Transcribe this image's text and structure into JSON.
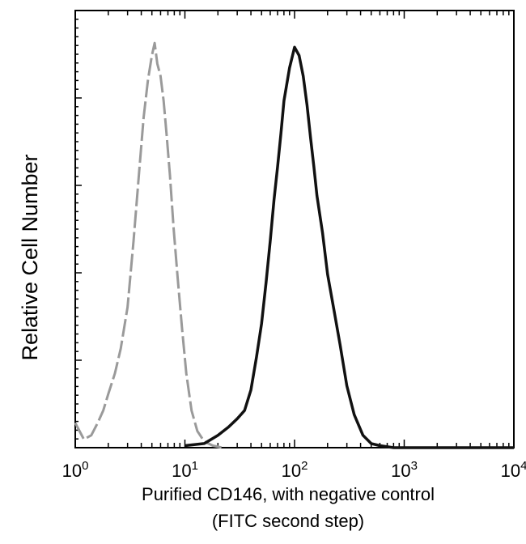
{
  "chart_data": {
    "type": "line",
    "title": "",
    "xlabel_lines": [
      "Purified  CD146, with negative control",
      "(FITC second step)"
    ],
    "ylabel": "Relative Cell Number",
    "x_scale": "log",
    "xlim": [
      1,
      10000
    ],
    "ylim": [
      0,
      1
    ],
    "x_ticks": [
      {
        "base": "10",
        "exp": "0"
      },
      {
        "base": "10",
        "exp": "1"
      },
      {
        "base": "10",
        "exp": "2"
      },
      {
        "base": "10",
        "exp": "3"
      },
      {
        "base": "10",
        "exp": "4"
      }
    ],
    "grid": false,
    "legend": "none",
    "series": [
      {
        "color": "#9a9a9a",
        "style": "dashed",
        "x": [
          1.0,
          1.2,
          1.4,
          1.6,
          1.8,
          2.0,
          2.3,
          2.6,
          3.0,
          3.4,
          3.8,
          4.2,
          4.6,
          5.0,
          5.3,
          5.6,
          6.0,
          6.4,
          6.8,
          7.3,
          7.9,
          8.6,
          9.4,
          10.3,
          11.5,
          13.0,
          15.0,
          18.0,
          22.0
        ],
        "y": [
          0.06,
          0.02,
          0.03,
          0.06,
          0.09,
          0.13,
          0.18,
          0.24,
          0.34,
          0.5,
          0.66,
          0.8,
          0.89,
          0.95,
          0.98,
          0.93,
          0.9,
          0.84,
          0.76,
          0.66,
          0.53,
          0.41,
          0.29,
          0.18,
          0.09,
          0.04,
          0.015,
          0.005,
          0.0
        ]
      },
      {
        "color": "#111111",
        "style": "solid",
        "x": [
          10,
          15,
          20,
          25,
          30,
          35,
          40,
          45,
          50,
          55,
          60,
          65,
          70,
          75,
          80,
          90,
          100,
          110,
          120,
          130,
          140,
          150,
          160,
          180,
          200,
          230,
          260,
          300,
          350,
          420,
          500,
          600,
          800,
          1000,
          2000,
          5000,
          10000
        ],
        "y": [
          0.005,
          0.01,
          0.03,
          0.05,
          0.07,
          0.09,
          0.14,
          0.22,
          0.3,
          0.4,
          0.5,
          0.6,
          0.68,
          0.76,
          0.84,
          0.92,
          0.97,
          0.95,
          0.9,
          0.83,
          0.75,
          0.68,
          0.61,
          0.52,
          0.42,
          0.33,
          0.25,
          0.15,
          0.08,
          0.03,
          0.01,
          0.005,
          0.0,
          0.0,
          0.0,
          0.0,
          0.0
        ]
      }
    ]
  }
}
